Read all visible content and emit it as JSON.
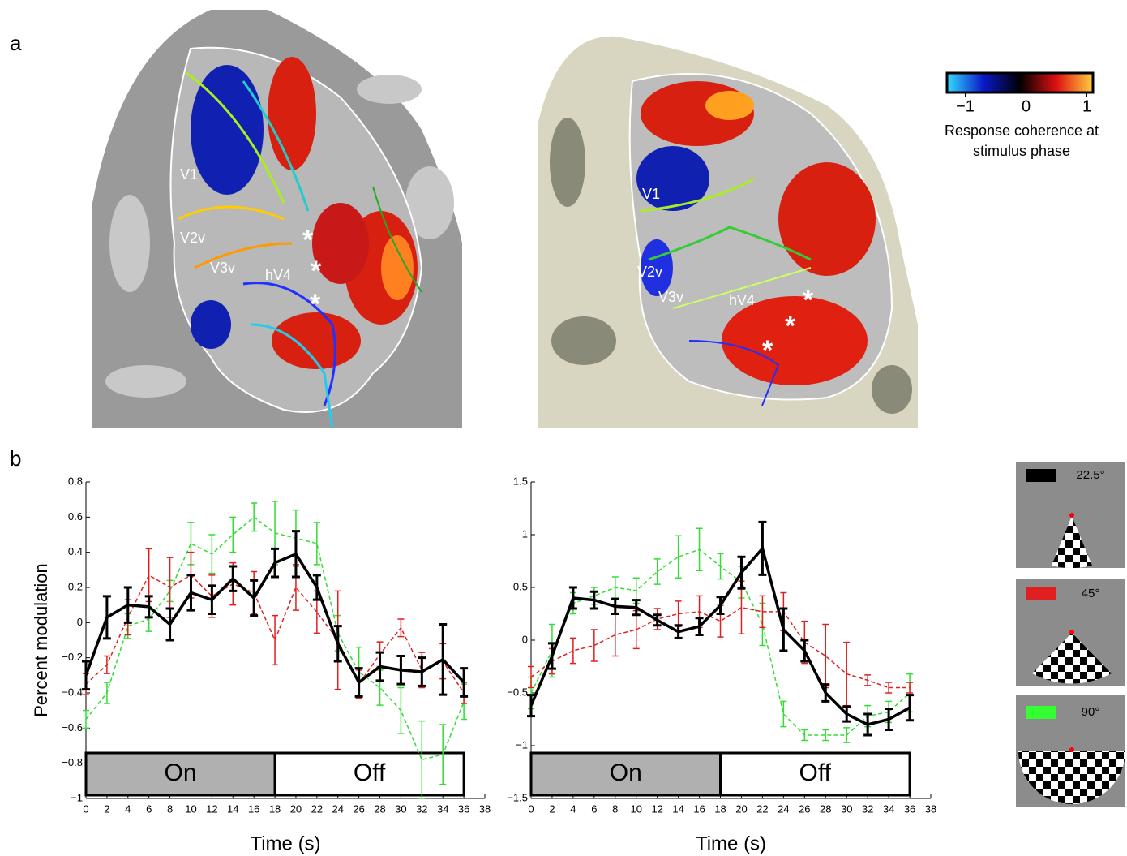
{
  "panel_labels": [
    "a",
    "b"
  ],
  "brain_maps": [
    {
      "labels": [
        "V1",
        "V2v",
        "V3v",
        "hV4",
        "*",
        "*",
        "*"
      ]
    },
    {
      "labels": [
        "V1",
        "V2v",
        "V3v",
        "hV4",
        "*",
        "*",
        "*"
      ]
    }
  ],
  "colorbar": {
    "lim": [
      -1.3,
      1.1
    ],
    "ticks": [
      {
        "value": -1,
        "label": "−1"
      },
      0,
      1
    ],
    "caption": [
      "Response coherence at",
      "stimulus phase"
    ]
  },
  "chart_data": [
    {
      "type": "line",
      "ylabel": "Percent modulation",
      "xlabel": "Time (s)",
      "x": [
        0,
        2,
        4,
        6,
        8,
        10,
        12,
        14,
        16,
        18,
        20,
        22,
        24,
        26,
        28,
        30,
        32,
        34,
        36
      ],
      "xlim": [
        0,
        38
      ],
      "xticks": [
        0,
        2,
        4,
        6,
        8,
        10,
        12,
        14,
        16,
        18,
        20,
        22,
        24,
        26,
        28,
        30,
        32,
        34,
        36,
        38
      ],
      "ylim": [
        -1,
        0.8
      ],
      "yticks": [
        {
          "value": -1,
          "label": "−1"
        },
        {
          "value": -0.8,
          "label": "−0.8"
        },
        {
          "value": -0.6,
          "label": "−0.6"
        },
        {
          "value": -0.4,
          "label": "−0.4"
        },
        {
          "value": -0.2,
          "label": "−0.2"
        },
        0,
        0.2,
        0.4,
        0.6,
        0.8
      ],
      "phases": [
        {
          "label": "On",
          "start": 0,
          "end": 18
        },
        {
          "label": "Off",
          "start": 18,
          "end": 36
        }
      ],
      "series": [
        {
          "name": "22.5°",
          "color": "#000000",
          "style": "solid",
          "values": [
            -0.3,
            0.03,
            0.1,
            0.09,
            -0.01,
            0.17,
            0.13,
            0.25,
            0.14,
            0.34,
            0.39,
            0.2,
            -0.12,
            -0.34,
            -0.25,
            -0.27,
            -0.28,
            -0.21,
            -0.34
          ],
          "errors": [
            0.08,
            0.12,
            0.1,
            0.06,
            0.09,
            0.1,
            0.08,
            0.07,
            0.1,
            0.08,
            0.13,
            0.07,
            0.1,
            0.08,
            0.08,
            0.08,
            0.08,
            0.2,
            0.08
          ]
        },
        {
          "name": "45°",
          "color": "#e02020",
          "style": "dashed",
          "values": [
            -0.35,
            -0.24,
            0.03,
            0.27,
            0.2,
            0.27,
            0.15,
            0.22,
            0.17,
            -0.1,
            0.2,
            0.06,
            -0.1,
            -0.35,
            -0.18,
            -0.03,
            -0.27,
            -0.22,
            -0.4
          ],
          "errors": [
            0.06,
            0.05,
            0.1,
            0.15,
            0.17,
            0.13,
            0.12,
            0.12,
            0.12,
            0.14,
            0.13,
            0.12,
            0.28,
            0.08,
            0.07,
            0.05,
            0.1,
            0.1,
            0.06
          ]
        },
        {
          "name": "90°",
          "color": "#33dd33",
          "style": "dashed",
          "values": [
            -0.55,
            -0.4,
            -0.02,
            0.02,
            0.18,
            0.45,
            0.39,
            0.5,
            0.6,
            0.51,
            0.48,
            0.45,
            -0.06,
            -0.28,
            -0.37,
            -0.5,
            -0.78,
            -0.75,
            -0.45
          ],
          "errors": [
            0.05,
            0.06,
            0.07,
            0.07,
            0.06,
            0.12,
            0.11,
            0.1,
            0.08,
            0.18,
            0.16,
            0.12,
            0.1,
            0.14,
            0.1,
            0.13,
            0.22,
            0.17,
            0.1
          ]
        }
      ]
    },
    {
      "type": "line",
      "xlabel": "Time (s)",
      "x": [
        0,
        2,
        4,
        6,
        8,
        10,
        12,
        14,
        16,
        18,
        20,
        22,
        24,
        26,
        28,
        30,
        32,
        34,
        36
      ],
      "xlim": [
        0,
        38
      ],
      "xticks": [
        0,
        2,
        4,
        6,
        8,
        10,
        12,
        14,
        16,
        18,
        20,
        22,
        24,
        26,
        28,
        30,
        32,
        34,
        36,
        38
      ],
      "ylim": [
        -1.5,
        1.5
      ],
      "yticks": [
        {
          "value": -1.5,
          "label": "−1.5"
        },
        {
          "value": -1,
          "label": "−1"
        },
        {
          "value": -0.5,
          "label": "−0.5"
        },
        0,
        0.5,
        1,
        1.5
      ],
      "phases": [
        {
          "label": "On",
          "start": 0,
          "end": 18
        },
        {
          "label": "Off",
          "start": 18,
          "end": 36
        }
      ],
      "series": [
        {
          "name": "22.5°",
          "color": "#000000",
          "style": "solid",
          "values": [
            -0.62,
            -0.15,
            0.4,
            0.38,
            0.32,
            0.31,
            0.19,
            0.08,
            0.13,
            0.33,
            0.64,
            0.87,
            0.1,
            -0.1,
            -0.5,
            -0.7,
            -0.8,
            -0.75,
            -0.64
          ],
          "errors": [
            0.1,
            0.12,
            0.1,
            0.08,
            0.07,
            0.07,
            0.05,
            0.06,
            0.08,
            0.08,
            0.15,
            0.25,
            0.2,
            0.1,
            0.08,
            0.07,
            0.1,
            0.1,
            0.12
          ]
        },
        {
          "name": "45°",
          "color": "#e02020",
          "style": "dashed",
          "values": [
            -0.35,
            -0.2,
            -0.1,
            -0.05,
            0.05,
            0.1,
            0.2,
            0.25,
            0.27,
            0.18,
            0.31,
            0.27,
            0.27,
            -0.02,
            -0.15,
            -0.32,
            -0.38,
            -0.45,
            -0.45
          ],
          "errors": [
            0.1,
            0.12,
            0.12,
            0.15,
            0.2,
            0.18,
            0.1,
            0.12,
            0.15,
            0.15,
            0.25,
            0.15,
            0.18,
            0.2,
            0.3,
            0.3,
            0.05,
            0.05,
            0.05
          ]
        },
        {
          "name": "90°",
          "color": "#33dd33",
          "style": "dashed",
          "values": [
            -0.5,
            -0.1,
            0.35,
            0.42,
            0.5,
            0.47,
            0.65,
            0.79,
            0.86,
            0.7,
            0.55,
            0.15,
            -0.7,
            -0.9,
            -0.9,
            -0.9,
            -0.72,
            -0.68,
            -0.5
          ],
          "errors": [
            0.15,
            0.25,
            0.1,
            0.08,
            0.1,
            0.12,
            0.12,
            0.2,
            0.2,
            0.12,
            0.15,
            0.2,
            0.12,
            0.05,
            0.05,
            0.07,
            0.1,
            0.1,
            0.18
          ]
        }
      ]
    }
  ]
}
